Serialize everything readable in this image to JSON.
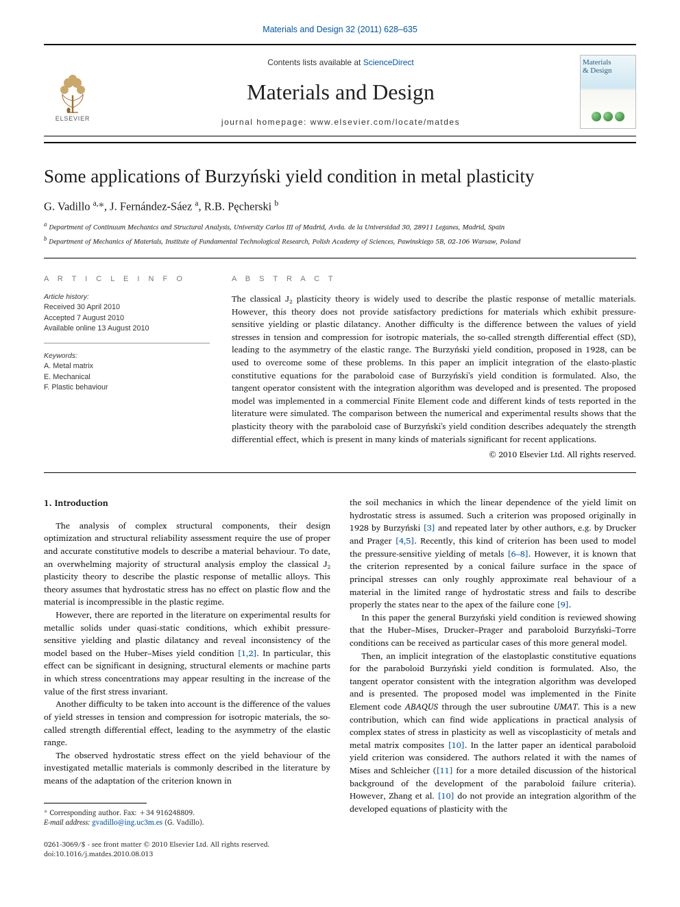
{
  "top_link": "Materials and Design 32 (2011) 628–635",
  "header": {
    "contents_prefix": "Contents lists available at ",
    "contents_link": "ScienceDirect",
    "journal": "Materials and Design",
    "homepage_prefix": "journal homepage: ",
    "homepage": "www.elsevier.com/locate/matdes",
    "publisher": "ELSEVIER",
    "cover_title_1": "Materials",
    "cover_title_2": "& Design"
  },
  "article": {
    "title": "Some applications of Burzyński yield condition in metal plasticity",
    "authors_html": "G. Vadillo <sup class=\"aff\">a,</sup><span class=\"star\">*</span>, J. Fernández-Sáez <sup class=\"aff\">a</sup>, R.B. Pęcherski <sup class=\"aff\">b</sup>",
    "affiliations": [
      "a Department of Continuum Mechanics and Structural Analysis, University Carlos III of Madrid, Avda. de la Universidad 30, 28911 Leganes, Madrid, Spain",
      "b Department of Mechanics of Materials, Institute of Fundamental Technological Research, Polish Academy of Sciences, Pawinskiego 5B, 02-106 Warsaw, Poland"
    ]
  },
  "info": {
    "heading": "A R T I C L E   I N F O",
    "history_label": "Article history:",
    "history": [
      "Received 30 April 2010",
      "Accepted 7 August 2010",
      "Available online 13 August 2010"
    ],
    "keywords_label": "Keywords:",
    "keywords": [
      "A. Metal matrix",
      "E. Mechanical",
      "F. Plastic behaviour"
    ]
  },
  "abstract": {
    "heading": "A B S T R A C T",
    "body": "The classical J₂ plasticity theory is widely used to describe the plastic response of metallic materials. However, this theory does not provide satisfactory predictions for materials which exhibit pressure-sensitive yielding or plastic dilatancy. Another difficulty is the difference between the values of yield stresses in tension and compression for isotropic materials, the so-called strength differential effect (SD), leading to the asymmetry of the elastic range. The Burzyński yield condition, proposed in 1928, can be used to overcome some of these problems. In this paper an implicit integration of the elasto-plastic constitutive equations for the paraboloid case of Burzyński's yield condition is formulated. Also, the tangent operator consistent with the integration algorithm was developed and is presented. The proposed model was implemented in a commercial Finite Element code and different kinds of tests reported in the literature were simulated. The comparison between the numerical and experimental results shows that the plasticity theory with the paraboloid case of Burzyński's yield condition describes adequately the strength differential effect, which is present in many kinds of materials significant for recent applications.",
    "copyright": "© 2010 Elsevier Ltd. All rights reserved."
  },
  "intro": {
    "heading": "1. Introduction",
    "p1": "The analysis of complex structural components, their design optimization and structural reliability assessment require the use of proper and accurate constitutive models to describe a material behaviour. To date, an overwhelming majority of structural analysis employ the classical J₂ plasticity theory to describe the plastic response of metallic alloys. This theory assumes that hydrostatic stress has no effect on plastic flow and the material is incompressible in the plastic regime.",
    "p2_a": "However, there are reported in the literature on experimental results for metallic solids under quasi-static conditions, which exhibit pressure-sensitive yielding and plastic dilatancy and reveal inconsistency of the model based on the Huber–Mises yield condition ",
    "p2_ref": "[1,2]",
    "p2_b": ". In particular, this effect can be significant in designing, structural elements or machine parts in which stress concentrations may appear resulting in the increase of the value of the first stress invariant.",
    "p3": "Another difficulty to be taken into account is the difference of the values of yield stresses in tension and compression for isotropic materials, the so-called strength differential effect, leading to the asymmetry of the elastic range.",
    "p4": "The observed hydrostatic stress effect on the yield behaviour of the investigated metallic materials is commonly described in the literature by means of the adaptation of the criterion known in",
    "p5_a": "the soil mechanics in which the linear dependence of the yield limit on hydrostatic stress is assumed. Such a criterion was proposed originally in 1928 by Burzyński ",
    "p5_ref1": "[3]",
    "p5_b": " and repeated later by other authors, e.g. by Drucker and Prager ",
    "p5_ref2": "[4,5]",
    "p5_c": ". Recently, this kind of criterion has been used to model the pressure-sensitive yielding of metals ",
    "p5_ref3": "[6–8]",
    "p5_d": ". However, it is known that the criterion represented by a conical failure surface in the space of principal stresses can only roughly approximate real behaviour of a material in the limited range of hydrostatic stress and fails to describe properly the states near to the apex of the failure cone ",
    "p5_ref4": "[9]",
    "p5_e": ".",
    "p6": "In this paper the general Burzyński yield condition is reviewed showing that the Huber–Mises, Drucker–Prager and paraboloid Burzyński–Torre conditions can be received as particular cases of this more general model.",
    "p7_a": "Then, an implicit integration of the elastoplastic constitutive equations for the paraboloid Burzyński yield condition is formulated. Also, the tangent operator consistent with the integration algorithm was developed and is presented. The proposed model was implemented in the Finite Element code ",
    "p7_i1": "ABAQUS",
    "p7_b": " through the user subroutine ",
    "p7_i2": "UMAT",
    "p7_c": ". This is a new contribution, which can find wide applications in practical analysis of complex states of stress in plasticity as well as viscoplasticity of metals and metal matrix composites ",
    "p7_ref1": "[10]",
    "p7_d": ". In the latter paper an identical paraboloid yield criterion was considered. The authors related it with the names of Mises and Schleicher (",
    "p7_ref2": "[11]",
    "p7_e": " for a more detailed discussion of the historical background of the development of the paraboloid failure criteria). However, Zhang et al. ",
    "p7_ref3": "[10]",
    "p7_f": " do not provide an integration algorithm of the developed equations of plasticity with the"
  },
  "footnote": {
    "corr": "* Corresponding author. Fax: +34 916248809.",
    "email_label": "E-mail address: ",
    "email": "gvadillo@ing.uc3m.es",
    "email_tail": " (G. Vadillo)."
  },
  "doi": {
    "line1": "0261-3069/$ - see front matter © 2010 Elsevier Ltd. All rights reserved.",
    "line2": "doi:10.1016/j.matdes.2010.08.013"
  },
  "colors": {
    "link": "#0055aa",
    "text": "#1a1a1a",
    "muted": "#777"
  }
}
